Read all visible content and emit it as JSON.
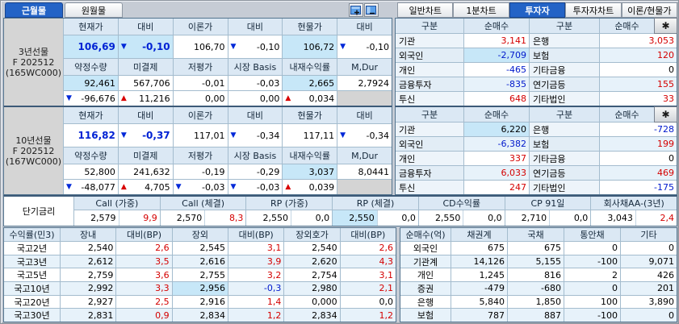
{
  "month_tabs": [
    {
      "label": "근월물",
      "active": true
    },
    {
      "label": "원월물",
      "active": false
    }
  ],
  "chart_tabs": [
    {
      "label": "일반차트",
      "active": false
    },
    {
      "label": "1분차트",
      "active": false
    },
    {
      "label": "투자자",
      "active": true
    },
    {
      "label": "투자자차트",
      "active": false
    },
    {
      "label": "이론/현물가",
      "active": false
    }
  ],
  "futures": [
    {
      "label_lines": [
        "3년선물",
        "F 202512",
        "(165WC000)"
      ],
      "headers1": [
        "현재가",
        "대비",
        "이론가",
        "대비",
        "현물가",
        "대비"
      ],
      "price_row": [
        {
          "t": "106,69",
          "cls": "big hl"
        },
        {
          "t": "-0,10",
          "cls": "big hl",
          "arr": "down"
        },
        {
          "t": "106,70"
        },
        {
          "t": "-0,10",
          "arr": "down"
        },
        {
          "t": "106,72",
          "cls": "hl"
        },
        {
          "t": "-0,10",
          "arr": "down"
        }
      ],
      "headers2": [
        "약정수량",
        "미결제",
        "저평가",
        "시장 Basis",
        "내재수익률",
        "M,Dur"
      ],
      "row1": [
        {
          "t": "92,461",
          "cls": "hl"
        },
        {
          "t": "567,706"
        },
        {
          "t": "-0,01"
        },
        {
          "t": "-0,03"
        },
        {
          "t": "2,665",
          "cls": "hl"
        },
        {
          "t": "2,7924"
        }
      ],
      "row2": [
        {
          "t": "-96,676",
          "arr": "down"
        },
        {
          "t": "11,216",
          "arr": "up"
        },
        {
          "t": "0,00"
        },
        {
          "t": "0,00"
        },
        {
          "t": "0,034",
          "arr": "up"
        },
        {
          "t": "",
          "cls": "gray"
        }
      ]
    },
    {
      "label_lines": [
        "10년선물",
        "F 202512",
        "(167WC000)"
      ],
      "headers1": [
        "현재가",
        "대비",
        "이론가",
        "대비",
        "현물가",
        "대비"
      ],
      "price_row": [
        {
          "t": "116,82",
          "cls": "big"
        },
        {
          "t": "-0,37",
          "cls": "big",
          "arr": "down"
        },
        {
          "t": "117,01"
        },
        {
          "t": "-0,34",
          "arr": "down"
        },
        {
          "t": "117,11"
        },
        {
          "t": "-0,34",
          "arr": "down"
        }
      ],
      "headers2": [
        "약정수량",
        "미결제",
        "저평가",
        "시장 Basis",
        "내재수익률",
        "M,Dur"
      ],
      "row1": [
        {
          "t": "52,800"
        },
        {
          "t": "241,632"
        },
        {
          "t": "-0,19"
        },
        {
          "t": "-0,29"
        },
        {
          "t": "3,037",
          "cls": "hl"
        },
        {
          "t": "8,0441"
        }
      ],
      "row2": [
        {
          "t": "-48,077",
          "arr": "down"
        },
        {
          "t": "4,705",
          "arr": "up"
        },
        {
          "t": "-0,03",
          "arr": "down"
        },
        {
          "t": "-0,03",
          "arr": "down"
        },
        {
          "t": "0,039",
          "arr": "up"
        },
        {
          "t": "",
          "cls": "gray"
        }
      ]
    }
  ],
  "investor_tables": [
    {
      "headers": [
        "구분",
        "순매수",
        "구분",
        "순매수"
      ],
      "gear_icon": "✱",
      "rows": [
        {
          "l1": "기관",
          "v1": {
            "t": "3,141",
            "cls": "red"
          },
          "l2": "은행",
          "v2": {
            "t": "3,053",
            "cls": "red"
          }
        },
        {
          "l1": "외국인",
          "v1": {
            "t": "-2,709",
            "cls": "blue hl"
          },
          "l2": "보험",
          "v2": {
            "t": "120",
            "cls": "red"
          }
        },
        {
          "l1": "개인",
          "v1": {
            "t": "-465",
            "cls": "blue"
          },
          "l2": "기타금융",
          "v2": {
            "t": "0"
          }
        },
        {
          "l1": "금융투자",
          "v1": {
            "t": "-835",
            "cls": "blue"
          },
          "l2": "연기금등",
          "v2": {
            "t": "155",
            "cls": "red"
          }
        },
        {
          "l1": "투신",
          "v1": {
            "t": "648",
            "cls": "red"
          },
          "l2": "기타법인",
          "v2": {
            "t": "33",
            "cls": "red"
          }
        }
      ]
    },
    {
      "headers": [
        "구분",
        "순매수",
        "구분",
        "순매수"
      ],
      "gear_icon": "✱",
      "rows": [
        {
          "l1": "기관",
          "v1": {
            "t": "6,220",
            "cls": "hl"
          },
          "l2": "은행",
          "v2": {
            "t": "-728",
            "cls": "blue"
          }
        },
        {
          "l1": "외국인",
          "v1": {
            "t": "-6,382",
            "cls": "blue"
          },
          "l2": "보험",
          "v2": {
            "t": "199",
            "cls": "red"
          }
        },
        {
          "l1": "개인",
          "v1": {
            "t": "337",
            "cls": "red"
          },
          "l2": "기타금융",
          "v2": {
            "t": "0"
          }
        },
        {
          "l1": "금융투자",
          "v1": {
            "t": "6,033",
            "cls": "red"
          },
          "l2": "연기금등",
          "v2": {
            "t": "469",
            "cls": "red"
          }
        },
        {
          "l1": "투신",
          "v1": {
            "t": "247",
            "cls": "red"
          },
          "l2": "기타법인",
          "v2": {
            "t": "-175",
            "cls": "blue"
          }
        }
      ]
    }
  ],
  "short_rates": {
    "label": "단기금리",
    "items": [
      {
        "name": "Call (가중)",
        "value": "2,579",
        "chg": "9,9",
        "chg_cls": "red"
      },
      {
        "name": "Call (체결)",
        "value": "2,570",
        "chg": "8,3",
        "chg_cls": "red"
      },
      {
        "name": "RP (가중)",
        "value": "2,550",
        "chg": "0,0",
        "chg_cls": ""
      },
      {
        "name": "RP (체결)",
        "value": "2,550",
        "value_cls": "hl",
        "chg": "0,0",
        "chg_cls": ""
      },
      {
        "name": "CD수익률",
        "value": "2,550",
        "chg": "0,0",
        "chg_cls": ""
      },
      {
        "name": "CP 91일",
        "value": "2,710",
        "chg": "0,0",
        "chg_cls": ""
      },
      {
        "name": "회사채AA-(3년)",
        "value": "3,043",
        "chg": "2,4",
        "chg_cls": "red"
      }
    ]
  },
  "yield_table": {
    "title": "수익률(민3)",
    "headers": [
      "장내",
      "대비(BP)",
      "장외",
      "대비(BP)",
      "장외호가",
      "대비(BP)"
    ],
    "rows": [
      {
        "name": "국고2년",
        "cells": [
          {
            "t": "2,540"
          },
          {
            "t": "2,6",
            "cls": "red"
          },
          {
            "t": "2,545"
          },
          {
            "t": "3,1",
            "cls": "red"
          },
          {
            "t": "2,540"
          },
          {
            "t": "2,6",
            "cls": "red"
          }
        ]
      },
      {
        "name": "국고3년",
        "cells": [
          {
            "t": "2,612"
          },
          {
            "t": "3,5",
            "cls": "red"
          },
          {
            "t": "2,616"
          },
          {
            "t": "3,9",
            "cls": "red"
          },
          {
            "t": "2,620"
          },
          {
            "t": "4,3",
            "cls": "red"
          }
        ]
      },
      {
        "name": "국고5년",
        "cells": [
          {
            "t": "2,759"
          },
          {
            "t": "3,6",
            "cls": "red"
          },
          {
            "t": "2,755"
          },
          {
            "t": "3,2",
            "cls": "red"
          },
          {
            "t": "2,754"
          },
          {
            "t": "3,1",
            "cls": "red"
          }
        ]
      },
      {
        "name": "국고10년",
        "cells": [
          {
            "t": "2,992"
          },
          {
            "t": "3,3",
            "cls": "red"
          },
          {
            "t": "2,956",
            "cls": "hl"
          },
          {
            "t": "-0,3",
            "cls": "blue"
          },
          {
            "t": "2,980"
          },
          {
            "t": "2,1",
            "cls": "red"
          }
        ]
      },
      {
        "name": "국고20년",
        "cells": [
          {
            "t": "2,927"
          },
          {
            "t": "2,5",
            "cls": "red"
          },
          {
            "t": "2,916"
          },
          {
            "t": "1,4",
            "cls": "red"
          },
          {
            "t": "0,000"
          },
          {
            "t": "0,0"
          }
        ]
      },
      {
        "name": "국고30년",
        "cells": [
          {
            "t": "2,831"
          },
          {
            "t": "0,9",
            "cls": "red"
          },
          {
            "t": "2,834"
          },
          {
            "t": "1,2",
            "cls": "red"
          },
          {
            "t": "2,834"
          },
          {
            "t": "1,2",
            "cls": "red"
          }
        ]
      }
    ]
  },
  "netbuy_table": {
    "title": "순매수(억)",
    "headers": [
      "채권계",
      "국채",
      "통안채",
      "기타"
    ],
    "rows": [
      {
        "name": "외국인",
        "cells": [
          "675",
          "675",
          "0",
          "0"
        ]
      },
      {
        "name": "기관계",
        "cells": [
          "14,126",
          "5,155",
          "-100",
          "9,071"
        ]
      },
      {
        "name": "개인",
        "cells": [
          "1,245",
          "816",
          "2",
          "426"
        ]
      },
      {
        "name": "증권",
        "cells": [
          "-479",
          "-680",
          "0",
          "201"
        ]
      },
      {
        "name": "은행",
        "cells": [
          "5,840",
          "1,850",
          "100",
          "3,890"
        ]
      },
      {
        "name": "보험",
        "cells": [
          "787",
          "887",
          "-100",
          "0"
        ]
      }
    ]
  },
  "colors": {
    "accent_tab_blue": "#2363c6",
    "up_red": "#d40000",
    "down_blue": "#0018cc",
    "highlight_cyan": "#c7e7f8",
    "header_bg": "#dbe8f4"
  }
}
